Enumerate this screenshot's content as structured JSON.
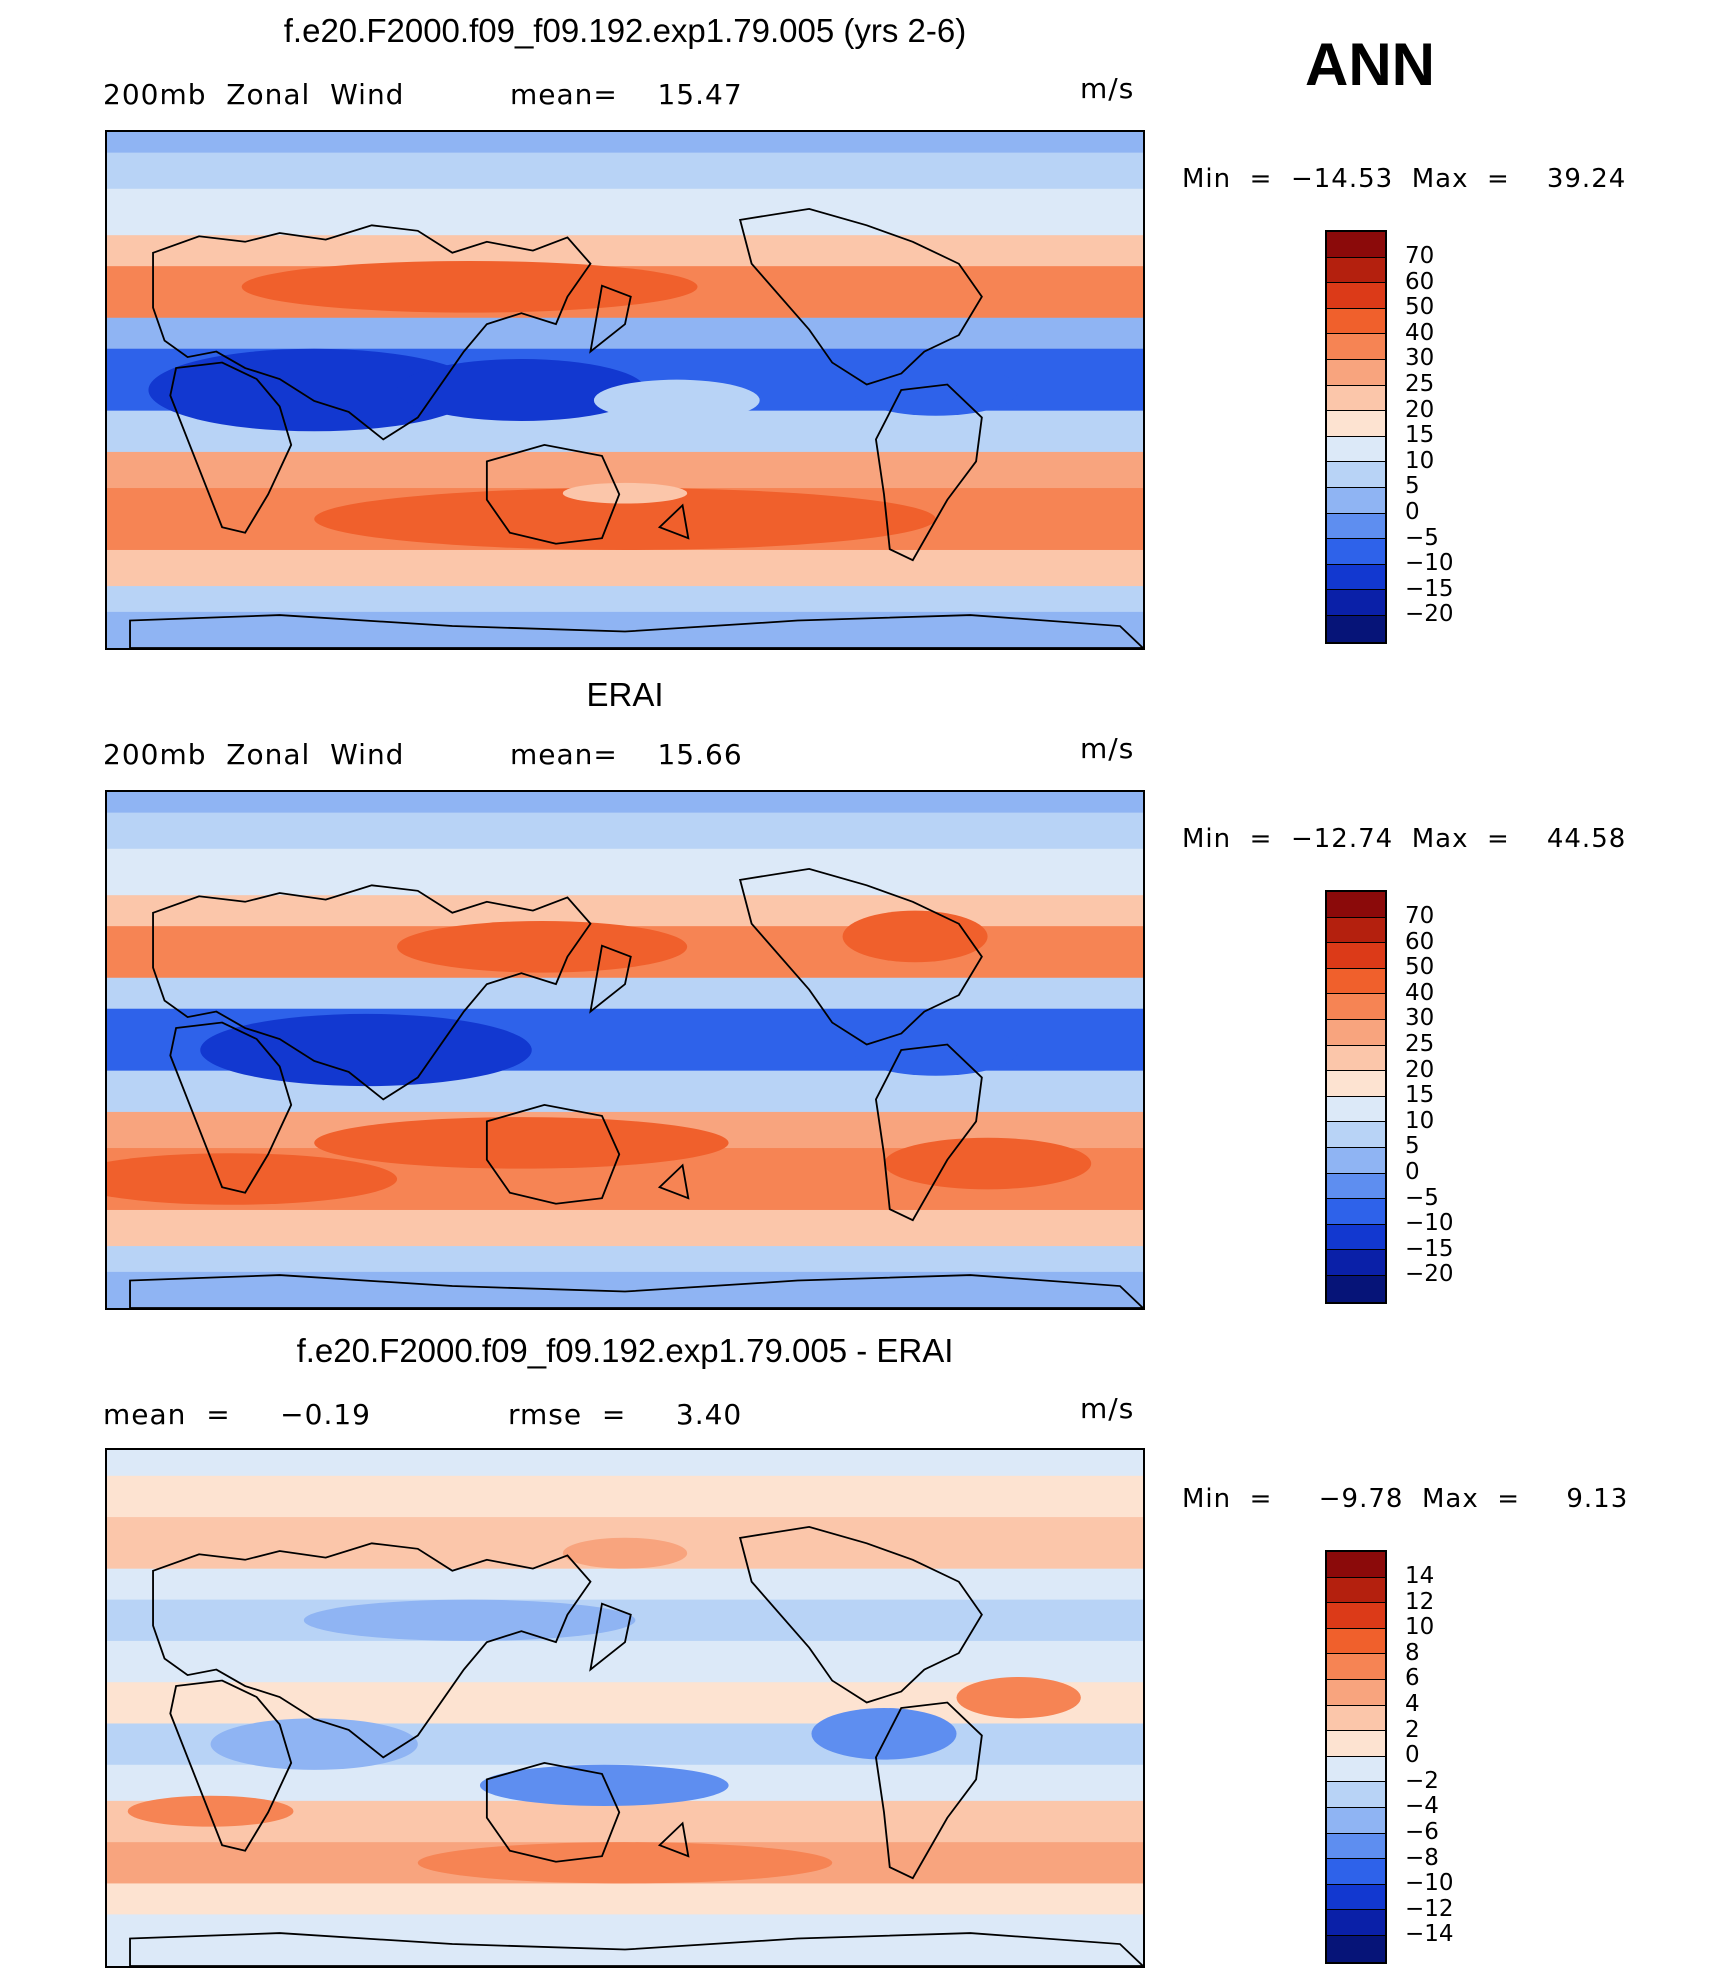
{
  "season": "ANN",
  "panels": [
    {
      "title": "f.e20.F2000.f09_f09.192.exp1.79.005 (yrs 2-6)",
      "left_label": "200mb  Zonal  Wind",
      "mid_label": "mean=    15.47",
      "units": "m/s",
      "minmax": "Min  =  −14.53  Max  =    39.24",
      "colorbar": {
        "levels": [
          "70",
          "60",
          "50",
          "40",
          "30",
          "25",
          "20",
          "15",
          "10",
          "5",
          "0",
          "−5",
          "−10",
          "−15",
          "−20"
        ],
        "colors": [
          "#8b0a0a",
          "#b4200e",
          "#dc3a18",
          "#f0602c",
          "#f68454",
          "#f8a47e",
          "#fbc6aa",
          "#fde3d1",
          "#dce9f8",
          "#b8d3f6",
          "#8fb4f3",
          "#5e8ef0",
          "#2e62ea",
          "#1238d0",
          "#0a20a8",
          "#061478"
        ]
      }
    },
    {
      "title": "ERAI",
      "left_label": "200mb  Zonal  Wind",
      "mid_label": "mean=    15.66",
      "units": "m/s",
      "minmax": "Min  =  −12.74  Max  =    44.58",
      "colorbar": {
        "levels": [
          "70",
          "60",
          "50",
          "40",
          "30",
          "25",
          "20",
          "15",
          "10",
          "5",
          "0",
          "−5",
          "−10",
          "−15",
          "−20"
        ],
        "colors": [
          "#8b0a0a",
          "#b4200e",
          "#dc3a18",
          "#f0602c",
          "#f68454",
          "#f8a47e",
          "#fbc6aa",
          "#fde3d1",
          "#dce9f8",
          "#b8d3f6",
          "#8fb4f3",
          "#5e8ef0",
          "#2e62ea",
          "#1238d0",
          "#0a20a8",
          "#061478"
        ]
      }
    },
    {
      "title": "f.e20.F2000.f09_f09.192.exp1.79.005 - ERAI",
      "left_label": "mean  =     −0.19",
      "mid_label": "rmse  =     3.40",
      "units": "m/s",
      "minmax": "Min  =     −9.78  Max  =     9.13",
      "colorbar": {
        "levels": [
          "14",
          "12",
          "10",
          "8",
          "6",
          "4",
          "2",
          "0",
          "−2",
          "−4",
          "−6",
          "−8",
          "−10",
          "−12",
          "−14"
        ],
        "colors": [
          "#8b0a0a",
          "#b4200e",
          "#dc3a18",
          "#f0602c",
          "#f68454",
          "#f8a47e",
          "#fbc6aa",
          "#fde3d1",
          "#dce9f8",
          "#b8d3f6",
          "#8fb4f3",
          "#5e8ef0",
          "#2e62ea",
          "#1238d0",
          "#0a20a8",
          "#061478"
        ]
      }
    }
  ]
}
